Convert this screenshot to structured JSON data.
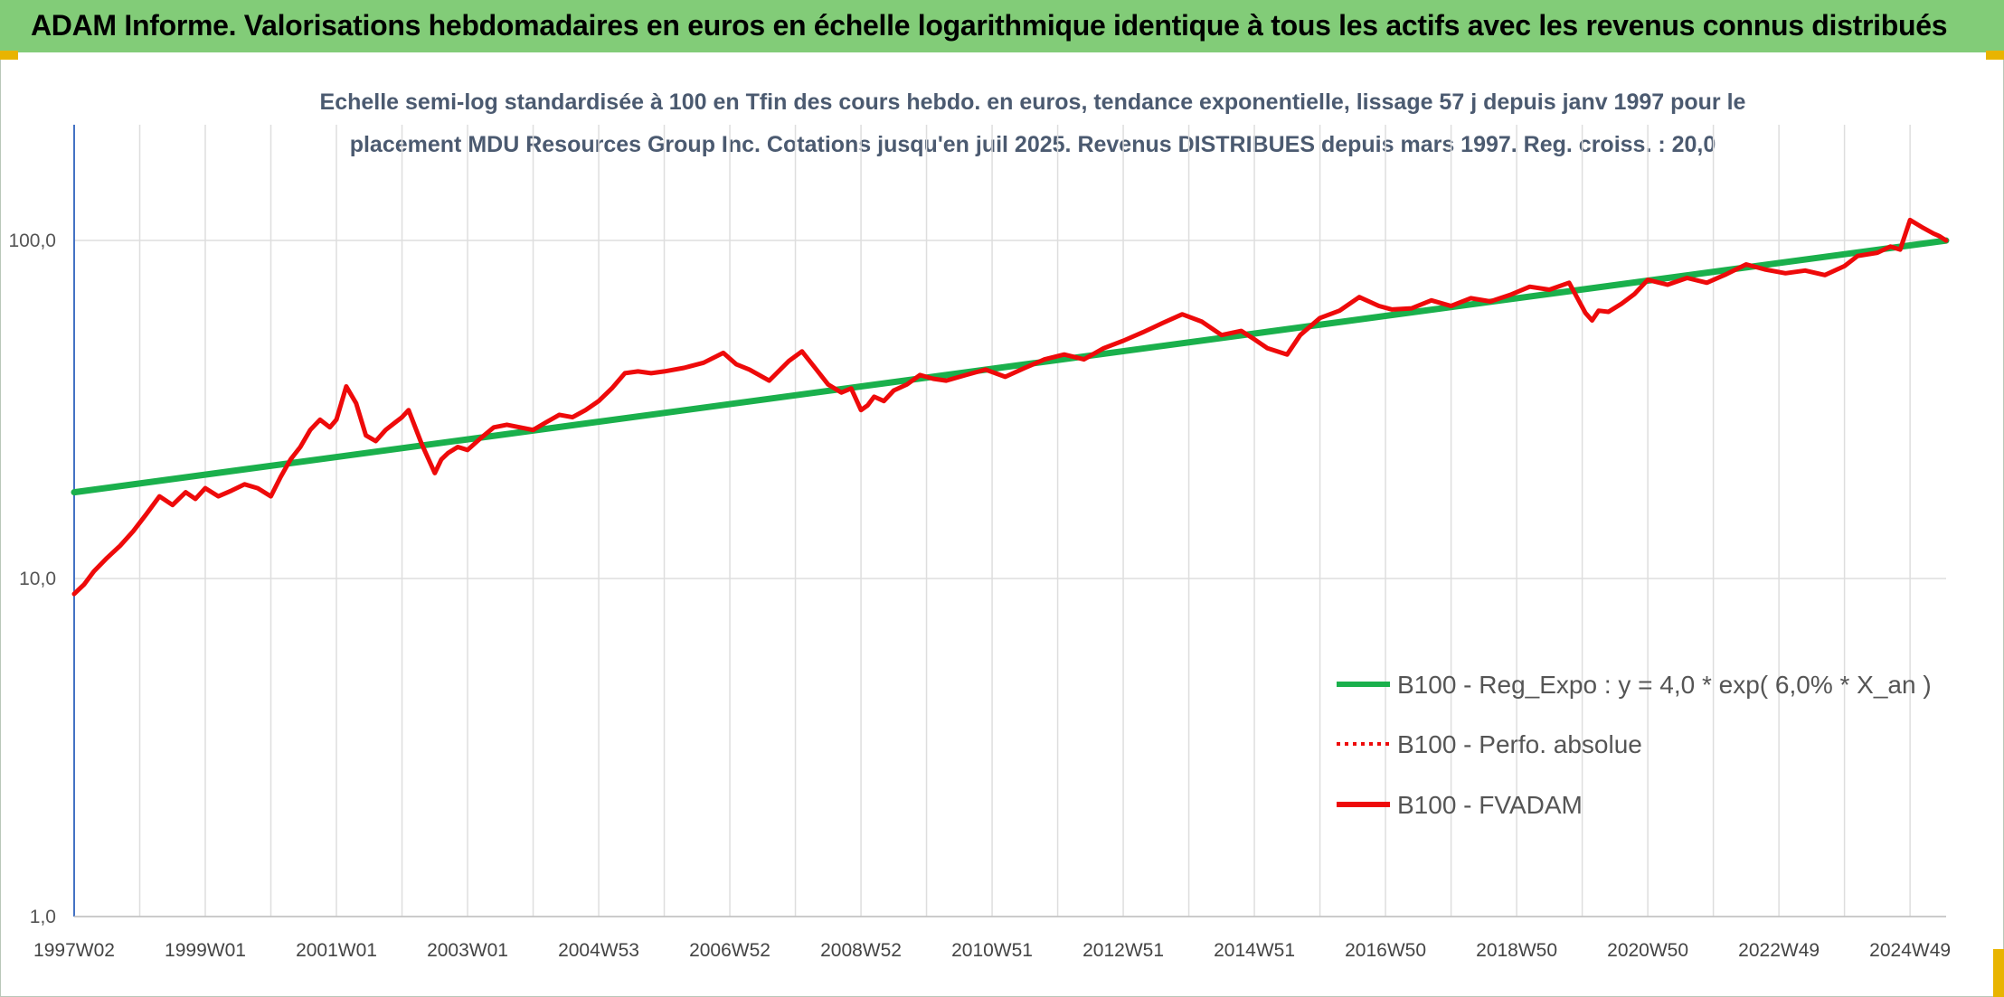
{
  "banner": {
    "title": "ADAM Informe. Valorisations hebdomadaires en euros en échelle logarithmique identique à tous les actifs avec les revenus connus distribués"
  },
  "colors": {
    "banner_bg": "#82cc78",
    "corner_marks": "#e8b400",
    "trend": "#1ab04c",
    "series": "#ee0a0a",
    "grid": "#dedede",
    "axis": "#4472c4"
  },
  "chart_data": {
    "type": "line",
    "y_scale": "log",
    "title_lines": [
      "Echelle semi-log standardisée à 100 en Tfin des cours hebdo. en euros, tendance exponentielle, lissage 57 j depuis janv 1997 pour le",
      "placement MDU Resources Group Inc. Cotations jusqu'en juil 2025. Revenus DISTRIBUES depuis mars 1997. Reg. croiss. : 20,0"
    ],
    "y_ticks": [
      {
        "value": 100,
        "label": "100,0"
      },
      {
        "value": 10,
        "label": "10,0"
      },
      {
        "value": 1,
        "label": "1,0"
      }
    ],
    "ylim": [
      1,
      220
    ],
    "xlim": [
      1997.0,
      2025.55
    ],
    "x_ticks": [
      {
        "x": 1997.0,
        "label": "1997W02"
      },
      {
        "x": 1999.0,
        "label": "1999W01"
      },
      {
        "x": 2001.0,
        "label": "2001W01"
      },
      {
        "x": 2003.0,
        "label": "2003W01"
      },
      {
        "x": 2005.0,
        "label": "2004W53"
      },
      {
        "x": 2007.0,
        "label": "2006W52"
      },
      {
        "x": 2009.0,
        "label": "2008W52"
      },
      {
        "x": 2011.0,
        "label": "2010W51"
      },
      {
        "x": 2013.0,
        "label": "2012W51"
      },
      {
        "x": 2015.0,
        "label": "2014W51"
      },
      {
        "x": 2017.0,
        "label": "2016W50"
      },
      {
        "x": 2019.0,
        "label": "2018W50"
      },
      {
        "x": 2021.0,
        "label": "2020W50"
      },
      {
        "x": 2023.0,
        "label": "2022W49"
      },
      {
        "x": 2025.0,
        "label": "2024W49"
      }
    ],
    "minor_grid_x": [
      1998,
      2000,
      2002,
      2004,
      2006,
      2008,
      2010,
      2012,
      2014,
      2016,
      2018,
      2020,
      2022,
      2024
    ],
    "legend_position": "bottom-right",
    "series": [
      {
        "name": "B100 - Reg_Expo : y = 4,0 * exp( 6,0% *  X_an )",
        "style": "solid",
        "color": "#1ab04c",
        "x": [
          1997.0,
          2025.55
        ],
        "y": [
          18.0,
          100.0
        ]
      },
      {
        "name": "B100 - Perfo. absolue",
        "style": "dotted",
        "color": "#ee0a0a",
        "x": [],
        "y": []
      },
      {
        "name": "B100 - FVADAM",
        "style": "solid",
        "color": "#ee0a0a",
        "x": [
          1997.0,
          1997.15,
          1997.3,
          1997.5,
          1997.7,
          1997.9,
          1998.1,
          1998.3,
          1998.5,
          1998.7,
          1998.85,
          1999.0,
          1999.2,
          1999.4,
          1999.6,
          1999.8,
          2000.0,
          2000.15,
          2000.3,
          2000.45,
          2000.6,
          2000.75,
          2000.9,
          2001.0,
          2001.15,
          2001.3,
          2001.45,
          2001.6,
          2001.75,
          2001.9,
          2002.0,
          2002.1,
          2002.3,
          2002.5,
          2002.6,
          2002.7,
          2002.85,
          2003.0,
          2003.2,
          2003.4,
          2003.6,
          2003.8,
          2004.0,
          2004.2,
          2004.4,
          2004.6,
          2004.8,
          2005.0,
          2005.2,
          2005.4,
          2005.6,
          2005.8,
          2006.0,
          2006.3,
          2006.6,
          2006.9,
          2007.1,
          2007.3,
          2007.6,
          2007.9,
          2008.1,
          2008.3,
          2008.5,
          2008.7,
          2008.85,
          2009.0,
          2009.1,
          2009.2,
          2009.35,
          2009.5,
          2009.7,
          2009.9,
          2010.1,
          2010.3,
          2010.6,
          2010.9,
          2011.2,
          2011.5,
          2011.8,
          2012.1,
          2012.4,
          2012.7,
          2013.0,
          2013.3,
          2013.6,
          2013.9,
          2014.2,
          2014.5,
          2014.8,
          2015.0,
          2015.2,
          2015.5,
          2015.7,
          2016.0,
          2016.3,
          2016.6,
          2016.9,
          2017.1,
          2017.4,
          2017.7,
          2018.0,
          2018.3,
          2018.6,
          2018.9,
          2019.2,
          2019.5,
          2019.8,
          2020.05,
          2020.15,
          2020.25,
          2020.4,
          2020.6,
          2020.8,
          2021.0,
          2021.3,
          2021.6,
          2021.9,
          2022.2,
          2022.5,
          2022.8,
          2023.1,
          2023.4,
          2023.7,
          2024.0,
          2024.2,
          2024.5,
          2024.7,
          2024.85,
          2025.0,
          2025.2,
          2025.35,
          2025.45,
          2025.55
        ],
        "y": [
          9.0,
          9.6,
          10.5,
          11.5,
          12.5,
          13.8,
          15.5,
          17.5,
          16.5,
          18.0,
          17.2,
          18.5,
          17.5,
          18.2,
          19.0,
          18.5,
          17.5,
          20.0,
          22.5,
          24.5,
          27.5,
          29.5,
          28.0,
          29.5,
          37.0,
          33.0,
          26.5,
          25.5,
          27.5,
          29.0,
          30.0,
          31.5,
          25.0,
          20.5,
          22.5,
          23.5,
          24.5,
          24.0,
          26.0,
          28.0,
          28.5,
          28.0,
          27.5,
          29.0,
          30.5,
          30.0,
          31.5,
          33.5,
          36.5,
          40.5,
          41.0,
          40.5,
          41.0,
          42.0,
          43.5,
          46.5,
          43.0,
          41.5,
          38.5,
          44.0,
          47.0,
          42.0,
          37.5,
          35.5,
          36.5,
          31.5,
          32.5,
          34.5,
          33.5,
          36.0,
          37.5,
          40.0,
          39.0,
          38.5,
          40.0,
          41.5,
          39.5,
          42.0,
          44.5,
          46.0,
          44.5,
          48.0,
          50.5,
          53.5,
          57.0,
          60.5,
          57.5,
          52.5,
          54.0,
          51.0,
          48.0,
          46.0,
          52.5,
          59.0,
          62.0,
          68.0,
          64.0,
          62.5,
          63.0,
          66.5,
          64.0,
          67.5,
          66.0,
          69.0,
          73.0,
          71.5,
          75.0,
          61.0,
          58.0,
          62.0,
          61.5,
          65.0,
          69.5,
          76.5,
          74.0,
          77.5,
          75.0,
          79.5,
          85.0,
          82.0,
          80.0,
          81.5,
          79.0,
          84.0,
          90.0,
          92.0,
          96.0,
          94.0,
          115.0,
          109.0,
          105.0,
          103.0,
          100.0
        ]
      }
    ]
  }
}
